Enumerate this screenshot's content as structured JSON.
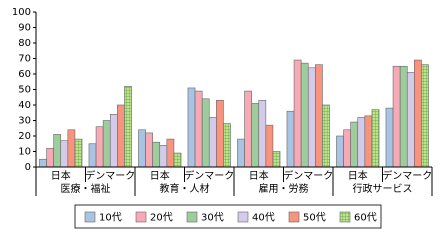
{
  "chart_data": {
    "type": "bar",
    "groups": [
      "医療・福祉",
      "教育・人材",
      "雇用・労務",
      "行政サービス"
    ],
    "categories": [
      "日本",
      "デンマーク",
      "日本",
      "デンマーク",
      "日本",
      "デンマーク",
      "日本",
      "デンマーク"
    ],
    "series": [
      {
        "name": "10代",
        "color": "#a9c3e3",
        "values": [
          5,
          15,
          24,
          51,
          18,
          36,
          20,
          38
        ]
      },
      {
        "name": "20代",
        "color": "#f7a9b6",
        "values": [
          12,
          26,
          22,
          49,
          49,
          69,
          24,
          65
        ]
      },
      {
        "name": "30代",
        "color": "#9fcc9d",
        "values": [
          21,
          30,
          16,
          44,
          41,
          67,
          29,
          65
        ]
      },
      {
        "name": "40代",
        "color": "#d3cbe9",
        "values": [
          17,
          34,
          14,
          32,
          43,
          64,
          32,
          61
        ]
      },
      {
        "name": "50代",
        "color": "#f8937e",
        "values": [
          24,
          40,
          18,
          43,
          27,
          66,
          33,
          69
        ]
      },
      {
        "name": "60代",
        "color": "#bde38e",
        "hatch": true,
        "values": [
          18,
          52,
          9,
          28,
          10,
          40,
          37,
          66
        ]
      }
    ],
    "ylim": [
      0,
      100
    ],
    "yticks": [
      0,
      10,
      20,
      30,
      40,
      50,
      60,
      70,
      80,
      90,
      100
    ],
    "legend": "bottom"
  }
}
